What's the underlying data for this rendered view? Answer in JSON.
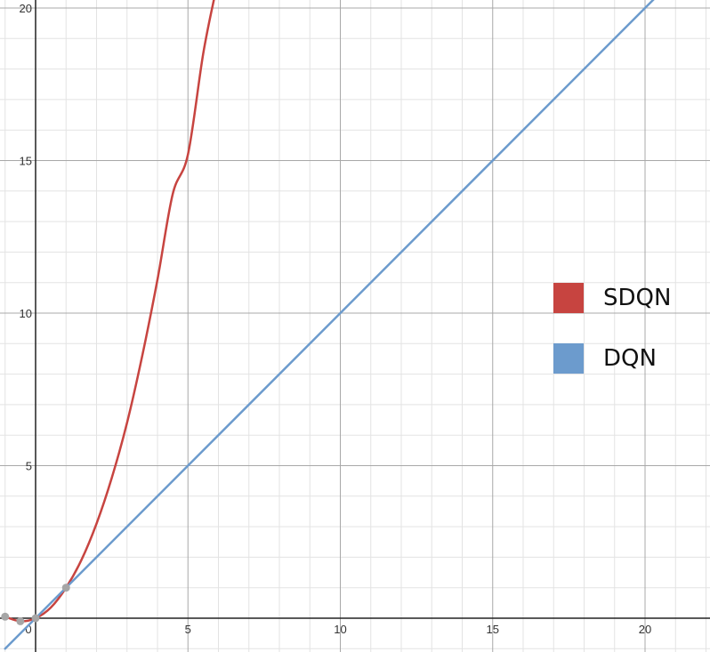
{
  "chart_data": {
    "type": "line",
    "title": "",
    "xlabel": "",
    "ylabel": "",
    "xlim": [
      -1.1,
      22.2
    ],
    "ylim": [
      -1.1,
      20.3
    ],
    "grid": true,
    "x_ticks": [
      0,
      5,
      10,
      15,
      20
    ],
    "y_ticks": [
      5,
      10,
      15,
      20
    ],
    "x_tick_labels": [
      "0",
      "5",
      "10",
      "15",
      "20"
    ],
    "y_tick_labels": [
      "5",
      "10",
      "15",
      "20"
    ],
    "legend_position": "right",
    "series": [
      {
        "name": "SDQN",
        "color": "#c74440",
        "x": [
          -1,
          -0.5,
          0,
          0.5,
          1,
          1.5,
          2,
          2.5,
          3,
          3.5,
          4,
          4.5,
          5,
          5.5,
          5.9
        ],
        "y": [
          0.05,
          -0.1,
          0,
          0.35,
          1,
          1.9,
          3.1,
          4.6,
          6.4,
          8.6,
          11.1,
          13.9,
          15.2,
          18.5,
          20.5
        ]
      },
      {
        "name": "DQN",
        "color": "#6c9bcd",
        "x": [
          -1,
          22
        ],
        "y": [
          -1,
          22
        ]
      }
    ],
    "points": [
      {
        "x": -1,
        "y": 0.05
      },
      {
        "x": -0.5,
        "y": -0.1
      },
      {
        "x": 0,
        "y": 0
      },
      {
        "x": 1,
        "y": 1
      }
    ]
  },
  "legend": {
    "items": [
      {
        "label": "SDQN",
        "color": "#c74440"
      },
      {
        "label": "DQN",
        "color": "#6c9bcd"
      }
    ]
  }
}
